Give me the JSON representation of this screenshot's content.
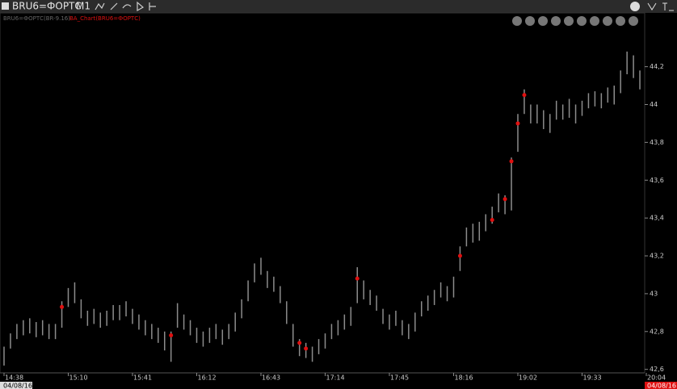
{
  "toolbar": {
    "symbol": "BRU6=ФОРТС",
    "timeframe": "M1"
  },
  "chart_data": {
    "type": "ohlc",
    "instrument": "BRU6=ФОРТС(BR-9.16)",
    "indicator": "BA_Chart(BRU6=ФОРТС)",
    "color": "#8c8c8c",
    "high": [
      42.72,
      42.79,
      42.84,
      42.86,
      42.87,
      42.85,
      42.86,
      42.84,
      42.84,
      42.96,
      43.03,
      43.06,
      42.97,
      42.91,
      42.92,
      42.9,
      42.91,
      42.94,
      42.94,
      42.96,
      42.92,
      42.89,
      42.86,
      42.84,
      42.82,
      42.8,
      42.8,
      42.95,
      42.89,
      42.86,
      42.82,
      42.8,
      42.82,
      42.84,
      42.81,
      42.84,
      42.9,
      42.97,
      43.07,
      43.16,
      43.19,
      43.12,
      43.09,
      43.04,
      42.96,
      42.84,
      42.76,
      42.74,
      42.72,
      42.76,
      42.79,
      42.84,
      42.86,
      42.89,
      42.93,
      43.14,
      43.07,
      43.02,
      42.99,
      42.92,
      42.89,
      42.91,
      42.86,
      42.84,
      42.9,
      42.96,
      42.99,
      43.02,
      43.06,
      43.04,
      43.09,
      43.25,
      43.35,
      43.37,
      43.38,
      43.42,
      43.46,
      43.53,
      43.52,
      43.72,
      43.95,
      44.08,
      44.0,
      44.0,
      43.97,
      43.95,
      44.02,
      44.0,
      44.03,
      44.0,
      44.02,
      44.06,
      44.07,
      44.06,
      44.09,
      44.1,
      44.18,
      44.28,
      44.26,
      44.18
    ],
    "low": [
      42.62,
      42.71,
      42.76,
      42.78,
      42.79,
      42.77,
      42.78,
      42.76,
      42.76,
      42.82,
      42.93,
      42.95,
      42.87,
      42.83,
      42.84,
      42.82,
      42.83,
      42.86,
      42.86,
      42.88,
      42.84,
      42.81,
      42.78,
      42.76,
      42.74,
      42.7,
      42.64,
      42.82,
      42.81,
      42.78,
      42.74,
      42.72,
      42.74,
      42.76,
      42.73,
      42.76,
      42.8,
      42.87,
      42.96,
      43.06,
      43.1,
      43.03,
      43.01,
      42.95,
      42.84,
      42.72,
      42.67,
      42.66,
      42.64,
      42.68,
      42.71,
      42.76,
      42.78,
      42.81,
      42.83,
      42.95,
      42.97,
      42.94,
      42.91,
      42.84,
      42.81,
      42.83,
      42.78,
      42.76,
      42.8,
      42.88,
      42.91,
      42.94,
      42.98,
      42.96,
      42.98,
      43.12,
      43.25,
      43.27,
      43.28,
      43.33,
      43.37,
      43.43,
      43.42,
      43.44,
      43.75,
      43.95,
      43.9,
      43.9,
      43.87,
      43.85,
      43.92,
      43.92,
      43.93,
      43.9,
      43.94,
      43.98,
      43.99,
      43.98,
      44.01,
      44.0,
      44.06,
      44.16,
      44.14,
      44.08
    ],
    "markers": {
      "color": "#e01010",
      "x": [
        9,
        26,
        46,
        47,
        55,
        71,
        76,
        78,
        79,
        80,
        81
      ],
      "values": [
        42.93,
        42.78,
        42.74,
        42.71,
        43.08,
        43.2,
        43.39,
        43.5,
        43.7,
        43.9,
        44.05
      ]
    },
    "xlim": [
      0,
      100
    ],
    "xticks": [
      {
        "value": 0,
        "label": "14:38"
      },
      {
        "value": 10,
        "label": "15:10"
      },
      {
        "value": 20,
        "label": "15:41"
      },
      {
        "value": 30,
        "label": "16:12"
      },
      {
        "value": 40,
        "label": "16:43"
      },
      {
        "value": 50,
        "label": "17:14"
      },
      {
        "value": 60,
        "label": "17:45"
      },
      {
        "value": 70,
        "label": "18:16"
      },
      {
        "value": 80,
        "label": "19:02"
      },
      {
        "value": 90,
        "label": "19:33"
      },
      {
        "value": 100,
        "label": "20:04"
      }
    ],
    "ylim": [
      42.59,
      44.48
    ],
    "yticks": [
      {
        "value": 42.6,
        "label": "42,6"
      },
      {
        "value": 42.8,
        "label": "42,8"
      },
      43,
      {
        "value": 43.2,
        "label": "43,2"
      },
      {
        "value": 43.4,
        "label": "43,4"
      },
      {
        "value": 43.6,
        "label": "43,6"
      },
      {
        "value": 43.8,
        "label": "43,8"
      },
      44,
      {
        "value": 44.2,
        "label": "44,2"
      }
    ],
    "start_date": "04/08/16",
    "end_date": "04/08/16"
  }
}
